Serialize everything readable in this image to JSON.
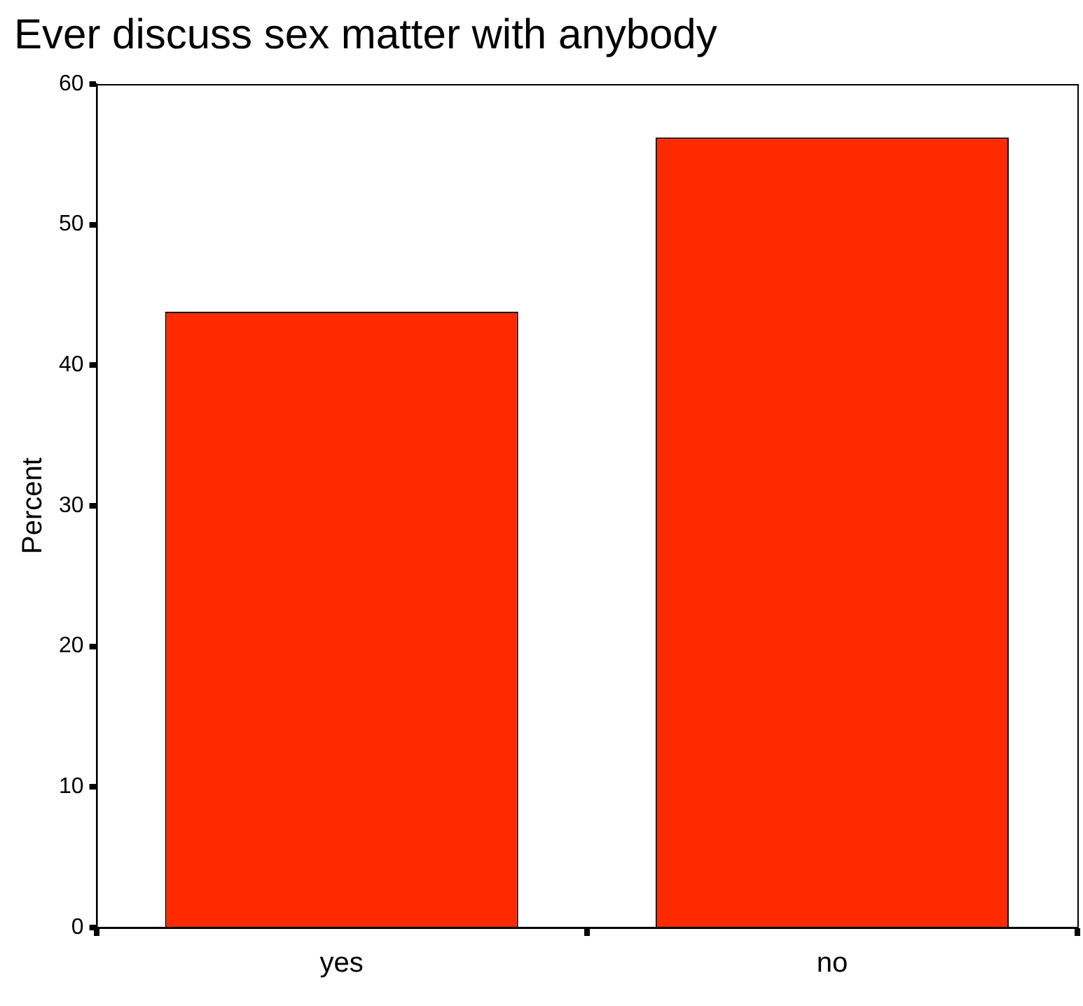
{
  "chart_data": {
    "type": "bar",
    "title": "Ever discuss sex matter with anybody",
    "ylabel": "Percent",
    "categories": [
      "yes",
      "no"
    ],
    "values": [
      43.8,
      56.2
    ],
    "color": "#ff2a00",
    "ylim": [
      0,
      60
    ],
    "yticks": [
      0,
      10,
      20,
      30,
      40,
      50,
      60
    ],
    "grid": false,
    "legend": false
  }
}
